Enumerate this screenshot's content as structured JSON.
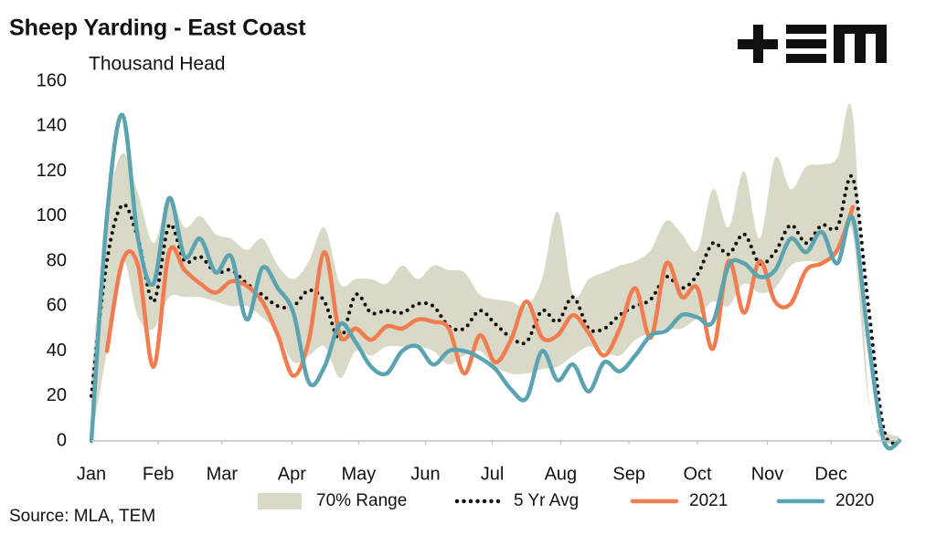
{
  "chart_data": {
    "type": "line",
    "title": "Sheep Yarding - East Coast",
    "subtitle": "Thousand Head",
    "source": "Source: MLA, TEM",
    "x": [
      1,
      2,
      3,
      4,
      5,
      6,
      7,
      8,
      9,
      10,
      11,
      12,
      13,
      14,
      15,
      16,
      17,
      18,
      19,
      20,
      21,
      22,
      23,
      24,
      25,
      26,
      27,
      28,
      29,
      30,
      31,
      32,
      33,
      34,
      35,
      36,
      37,
      38,
      39,
      40,
      41,
      42,
      43,
      44,
      45,
      46,
      47,
      48,
      49,
      50,
      51,
      52,
      53
    ],
    "xlim": [
      1,
      53
    ],
    "xticks": [
      {
        "value": 1,
        "label": "Jan"
      },
      {
        "value": 5.3,
        "label": "Feb"
      },
      {
        "value": 9.4,
        "label": "Mar"
      },
      {
        "value": 13.9,
        "label": "Apr"
      },
      {
        "value": 18.2,
        "label": "May"
      },
      {
        "value": 22.5,
        "label": "Jun"
      },
      {
        "value": 26.8,
        "label": "Jul"
      },
      {
        "value": 31.2,
        "label": "Aug"
      },
      {
        "value": 35.6,
        "label": "Sep"
      },
      {
        "value": 40,
        "label": "Oct"
      },
      {
        "value": 44.5,
        "label": "Nov"
      },
      {
        "value": 48.6,
        "label": "Dec"
      }
    ],
    "ylim": [
      0,
      160
    ],
    "yticks": [
      0,
      20,
      40,
      60,
      80,
      100,
      120,
      140,
      160
    ],
    "grid": false,
    "legend": "bottom",
    "series": [
      {
        "name": "70% Range",
        "color": "#d9d9c7",
        "high": [
          30,
          100,
          128,
          110,
          88,
          108,
          95,
          100,
          92,
          90,
          85,
          90,
          78,
          72,
          80,
          95,
          70,
          72,
          72,
          70,
          78,
          72,
          78,
          76,
          75,
          65,
          63,
          62,
          60,
          72,
          102,
          65,
          72,
          75,
          78,
          80,
          85,
          98,
          92,
          85,
          112,
          95,
          120,
          90,
          126,
          112,
          122,
          123,
          126,
          145,
          20,
          5,
          2
        ],
        "low": [
          0,
          40,
          80,
          55,
          50,
          64,
          64,
          64,
          62,
          60,
          60,
          55,
          48,
          35,
          38,
          42,
          28,
          40,
          38,
          42,
          42,
          42,
          40,
          34,
          38,
          40,
          33,
          30,
          30,
          32,
          33,
          38,
          42,
          40,
          38,
          45,
          48,
          50,
          50,
          55,
          62,
          60,
          70,
          66,
          68,
          78,
          80,
          80,
          85,
          92,
          18,
          0,
          0
        ]
      },
      {
        "name": "5 Yr Avg",
        "color": "#111111",
        "dash": "dotted",
        "values": [
          20,
          80,
          105,
          90,
          62,
          96,
          80,
          82,
          75,
          76,
          70,
          65,
          60,
          60,
          67,
          62,
          45,
          65,
          57,
          58,
          57,
          61,
          60,
          51,
          50,
          58,
          52,
          46,
          44,
          58,
          53,
          64,
          50,
          50,
          56,
          60,
          63,
          73,
          68,
          74,
          88,
          83,
          92,
          79,
          84,
          96,
          88,
          96,
          95,
          117,
          60,
          5,
          0
        ]
      },
      {
        "name": "2021",
        "color": "#f07c50",
        "values": [
          null,
          40,
          80,
          78,
          33,
          84,
          76,
          70,
          66,
          71,
          69,
          62,
          47,
          29,
          45,
          84,
          47,
          50,
          45,
          51,
          50,
          54,
          53,
          50,
          30,
          47,
          35,
          45,
          62,
          46,
          47,
          56,
          48,
          38,
          50,
          68,
          46,
          79,
          64,
          68,
          41,
          80,
          57,
          80,
          62,
          61,
          76,
          79,
          85,
          104,
          null,
          null,
          null
        ]
      },
      {
        "name": "2020",
        "color": "#5ba3b0",
        "values": [
          0,
          100,
          145,
          90,
          70,
          108,
          82,
          90,
          75,
          82,
          54,
          77,
          68,
          57,
          26,
          33,
          52,
          44,
          33,
          30,
          40,
          42,
          34,
          40,
          40,
          37,
          32,
          23,
          19,
          40,
          27,
          34,
          22,
          35,
          31,
          38,
          47,
          49,
          56,
          55,
          53,
          78,
          79,
          73,
          76,
          90,
          84,
          93,
          79,
          99,
          45,
          0,
          0
        ]
      }
    ]
  }
}
